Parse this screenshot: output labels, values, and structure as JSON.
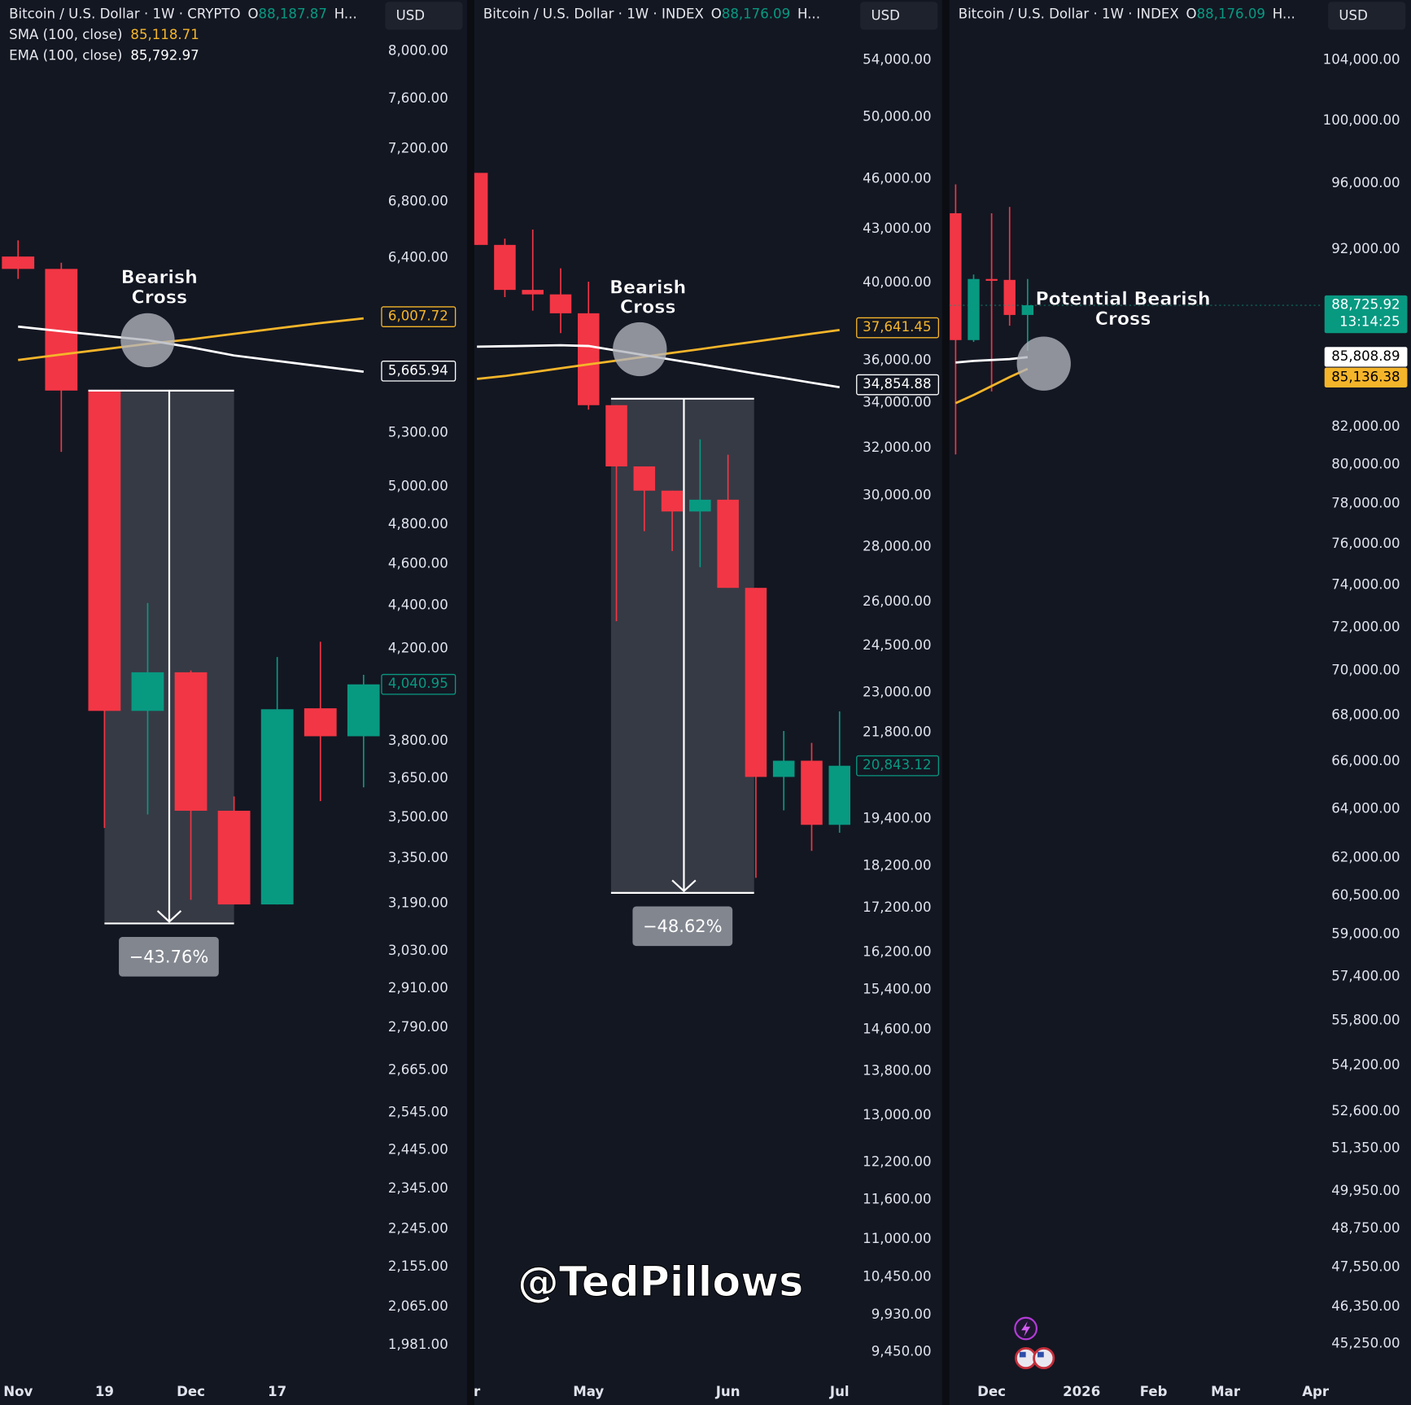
{
  "chart_data": [
    {
      "type": "candlestick",
      "title": "Bitcoin / U.S. Dollar · 1W · CRYPTO",
      "open_prefix": "O",
      "open_value": "88,187.87",
      "more": "H...",
      "currency": "USD",
      "indicators": [
        {
          "name": "SMA (100, close)",
          "value": "85,118.71"
        },
        {
          "name": "EMA (100, close)",
          "value": "85,792.97"
        }
      ],
      "log_scale": true,
      "up_color": "#089981",
      "down_color": "#f23645",
      "categories": [
        "Nov",
        null,
        "19",
        null,
        "Dec",
        null,
        "17",
        null,
        null
      ],
      "open": [
        6411,
        6326,
        5548,
        3927,
        4094,
        3526,
        3187,
        3938,
        3821
      ],
      "high": [
        6524,
        6368,
        5548,
        4412,
        4102,
        3581,
        4162,
        4231,
        4083
      ],
      "low": [
        6258,
        5193,
        3461,
        3512,
        3203,
        3187,
        3187,
        3563,
        3616
      ],
      "close": [
        6326,
        5548,
        3927,
        4094,
        3526,
        3187,
        3934,
        3821,
        4040.95
      ],
      "lines": [
        {
          "color": "#f5b52a",
          "values": [
            5734,
            5768,
            5801,
            5835,
            5863,
            5898,
            5933,
            5967,
            5997
          ],
          "last": {
            "value": 6007.72,
            "label": "6,007.72"
          }
        },
        {
          "color": "#ffffff",
          "values": [
            5944,
            5915,
            5886,
            5858,
            5813,
            5762,
            5728,
            5695,
            5662
          ],
          "last": {
            "value": 5665.94,
            "label": "5,665.94"
          }
        }
      ],
      "last_price": {
        "value": 4040.95,
        "label": "4,040.95"
      },
      "annotation": [
        "Bearish",
        "Cross"
      ],
      "measure": {
        "value": -43.76,
        "label": "−43.76%"
      },
      "ylim": [
        1914,
        8455
      ],
      "yticks": [
        {
          "value": 8000,
          "label": "8,000.00"
        },
        {
          "value": 7600,
          "label": "7,600.00"
        },
        {
          "value": 7200,
          "label": "7,200.00"
        },
        {
          "value": 6800,
          "label": "6,800.00"
        },
        {
          "value": 6400,
          "label": "6,400.00"
        },
        {
          "value": 5300,
          "label": "5,300.00"
        },
        {
          "value": 5000,
          "label": "5,000.00"
        },
        {
          "value": 4800,
          "label": "4,800.00"
        },
        {
          "value": 4600,
          "label": "4,600.00"
        },
        {
          "value": 4400,
          "label": "4,400.00"
        },
        {
          "value": 4200,
          "label": "4,200.00"
        },
        {
          "value": 3800,
          "label": "3,800.00"
        },
        {
          "value": 3650,
          "label": "3,650.00"
        },
        {
          "value": 3500,
          "label": "3,500.00"
        },
        {
          "value": 3350,
          "label": "3,350.00"
        },
        {
          "value": 3190,
          "label": "3,190.00"
        },
        {
          "value": 3030,
          "label": "3,030.00"
        },
        {
          "value": 2910,
          "label": "2,910.00"
        },
        {
          "value": 2790,
          "label": "2,790.00"
        },
        {
          "value": 2665,
          "label": "2,665.00"
        },
        {
          "value": 2545,
          "label": "2,545.00"
        },
        {
          "value": 2445,
          "label": "2,445.00"
        },
        {
          "value": 2345,
          "label": "2,345.00"
        },
        {
          "value": 2245,
          "label": "2,245.00"
        },
        {
          "value": 2155,
          "label": "2,155.00"
        },
        {
          "value": 2065,
          "label": "2,065.00"
        },
        {
          "value": 1981,
          "label": "1,981.00"
        }
      ]
    },
    {
      "type": "candlestick",
      "title": "Bitcoin / U.S. Dollar · 1W · INDEX",
      "open_prefix": "O",
      "open_value": "88,176.09",
      "more": "H...",
      "currency": "USD",
      "log_scale": true,
      "up_color": "#089981",
      "down_color": "#f23645",
      "categories": [
        "r",
        null,
        null,
        null,
        "May",
        null,
        null,
        null,
        null,
        "Jun",
        null,
        null,
        null,
        "Jul"
      ],
      "open": [
        46391,
        42093,
        39614,
        39374,
        38383,
        33907,
        31217,
        30213,
        29376,
        29846,
        26498,
        20531,
        20985,
        19246
      ],
      "high": [
        46391,
        42455,
        42974,
        40786,
        40052,
        33907,
        31217,
        30213,
        32378,
        31714,
        26498,
        21843,
        21497,
        22432
      ],
      "low": [
        42093,
        39231,
        38518,
        37369,
        33701,
        25331,
        28604,
        27848,
        27248,
        26498,
        17917,
        19624,
        18581,
        19040
      ],
      "close": [
        42093,
        39614,
        39374,
        38383,
        33907,
        31217,
        30213,
        29376,
        29846,
        26498,
        20531,
        20985,
        19246,
        20843.12
      ],
      "lines": [
        {
          "color": "#f5b52a",
          "values": [
            35131,
            35267,
            35451,
            35640,
            35824,
            36007,
            36196,
            36385,
            36569,
            36763,
            36952,
            37141,
            37336,
            37530
          ],
          "last": {
            "value": 37641.45,
            "label": "37,641.45"
          }
        },
        {
          "color": "#ffffff",
          "values": [
            36693,
            36715,
            36736,
            36763,
            36725,
            36499,
            36277,
            36050,
            35829,
            35608,
            35381,
            35170,
            34949,
            34738
          ],
          "last": {
            "value": 34854.88,
            "label": "34,854.88"
          }
        }
      ],
      "last_price": {
        "value": 20843.12,
        "label": "20,843.12"
      },
      "annotation": [
        "Bearish",
        "Cross"
      ],
      "measure": {
        "value": -48.62,
        "label": "−48.62%"
      },
      "ylim": [
        9134,
        58580
      ],
      "yticks": [
        {
          "value": 54000,
          "label": "54,000.00"
        },
        {
          "value": 50000,
          "label": "50,000.00"
        },
        {
          "value": 46000,
          "label": "46,000.00"
        },
        {
          "value": 43000,
          "label": "43,000.00"
        },
        {
          "value": 40000,
          "label": "40,000.00"
        },
        {
          "value": 36000,
          "label": "36,000.00"
        },
        {
          "value": 34000,
          "label": "34,000.00"
        },
        {
          "value": 32000,
          "label": "32,000.00"
        },
        {
          "value": 30000,
          "label": "30,000.00"
        },
        {
          "value": 28000,
          "label": "28,000.00"
        },
        {
          "value": 26000,
          "label": "26,000.00"
        },
        {
          "value": 24500,
          "label": "24,500.00"
        },
        {
          "value": 23000,
          "label": "23,000.00"
        },
        {
          "value": 21800,
          "label": "21,800.00"
        },
        {
          "value": 19400,
          "label": "19,400.00"
        },
        {
          "value": 18200,
          "label": "18,200.00"
        },
        {
          "value": 17200,
          "label": "17,200.00"
        },
        {
          "value": 16200,
          "label": "16,200.00"
        },
        {
          "value": 15400,
          "label": "15,400.00"
        },
        {
          "value": 14600,
          "label": "14,600.00"
        },
        {
          "value": 13800,
          "label": "13,800.00"
        },
        {
          "value": 13000,
          "label": "13,000.00"
        },
        {
          "value": 12200,
          "label": "12,200.00"
        },
        {
          "value": 11600,
          "label": "11,600.00"
        },
        {
          "value": 11000,
          "label": "11,000.00"
        },
        {
          "value": 10450,
          "label": "10,450.00"
        },
        {
          "value": 9930,
          "label": "9,930.00"
        },
        {
          "value": 9450,
          "label": "9,450.00"
        }
      ]
    },
    {
      "type": "candlestick",
      "title": "Bitcoin / U.S. Dollar · 1W · INDEX",
      "open_prefix": "O",
      "open_value": "88,176.09",
      "more": "H...",
      "currency": "USD",
      "log_scale": true,
      "up_color": "#089981",
      "down_color": "#f23645",
      "categories": [
        null,
        null,
        "Dec",
        null,
        null,
        null,
        null,
        "2026",
        null,
        null,
        null,
        "Feb",
        null,
        null,
        null,
        "Mar",
        null,
        null,
        null,
        null,
        "Apr"
      ],
      "open": [
        94182,
        86746,
        90251,
        90199,
        88171,
        null,
        null,
        null,
        null,
        null,
        null,
        null,
        null,
        null,
        null,
        null,
        null,
        null,
        null,
        null,
        null
      ],
      "high": [
        95961,
        90511,
        94182,
        94567,
        90251,
        null,
        null,
        null,
        null,
        null,
        null,
        null,
        null,
        null,
        null,
        null,
        null,
        null,
        null,
        null,
        null
      ],
      "low": [
        80548,
        86642,
        83907,
        87558,
        86143,
        null,
        null,
        null,
        null,
        null,
        null,
        null,
        null,
        null,
        null,
        null,
        null,
        null,
        null,
        null,
        null
      ],
      "close": [
        86746,
        90251,
        90199,
        88171,
        88725.92,
        null,
        null,
        null,
        null,
        null,
        null,
        null,
        null,
        null,
        null,
        null,
        null,
        null,
        null,
        null,
        null
      ],
      "lines": [
        {
          "color": "#ffffff",
          "values": [
            85492,
            85582,
            85634,
            85686,
            85790,
            null,
            null,
            null,
            null,
            null,
            null,
            null,
            null,
            null,
            null,
            null,
            null,
            null,
            null,
            null,
            null
          ],
          "last": {
            "value": 85808.89,
            "label": "85,808.89"
          }
        },
        {
          "color": "#f5b52a",
          "values": [
            83273,
            83710,
            84198,
            84687,
            85145,
            null,
            null,
            null,
            null,
            null,
            null,
            null,
            null,
            null,
            null,
            null,
            null,
            null,
            null,
            null,
            null
          ],
          "last": {
            "value": 85136.38,
            "label": "85,136.38"
          }
        }
      ],
      "last_price": {
        "value": 88725.92,
        "label": "88,725.92"
      },
      "countdown": "13:14:25",
      "annotation": [
        "Potential Bearish",
        "Cross"
      ],
      "ylim": [
        44284,
        108146
      ],
      "yticks": [
        {
          "value": 104000,
          "label": "104,000.00"
        },
        {
          "value": 100000,
          "label": "100,000.00"
        },
        {
          "value": 96000,
          "label": "96,000.00"
        },
        {
          "value": 92000,
          "label": "92,000.00"
        },
        {
          "value": 82000,
          "label": "82,000.00"
        },
        {
          "value": 80000,
          "label": "80,000.00"
        },
        {
          "value": 78000,
          "label": "78,000.00"
        },
        {
          "value": 76000,
          "label": "76,000.00"
        },
        {
          "value": 74000,
          "label": "74,000.00"
        },
        {
          "value": 72000,
          "label": "72,000.00"
        },
        {
          "value": 70000,
          "label": "70,000.00"
        },
        {
          "value": 68000,
          "label": "68,000.00"
        },
        {
          "value": 66000,
          "label": "66,000.00"
        },
        {
          "value": 64000,
          "label": "64,000.00"
        },
        {
          "value": 62000,
          "label": "62,000.00"
        },
        {
          "value": 60500,
          "label": "60,500.00"
        },
        {
          "value": 59000,
          "label": "59,000.00"
        },
        {
          "value": 57400,
          "label": "57,400.00"
        },
        {
          "value": 55800,
          "label": "55,800.00"
        },
        {
          "value": 54200,
          "label": "54,200.00"
        },
        {
          "value": 52600,
          "label": "52,600.00"
        },
        {
          "value": 51350,
          "label": "51,350.00"
        },
        {
          "value": 49950,
          "label": "49,950.00"
        },
        {
          "value": 48750,
          "label": "48,750.00"
        },
        {
          "value": 47550,
          "label": "47,550.00"
        },
        {
          "value": 46350,
          "label": "46,350.00"
        },
        {
          "value": 45250,
          "label": "45,250.00"
        }
      ]
    }
  ],
  "watermark": "@TedPillows"
}
